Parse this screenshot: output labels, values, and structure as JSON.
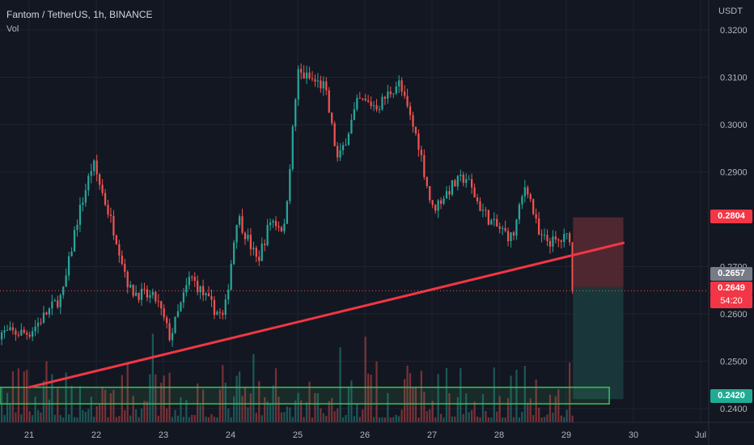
{
  "header": {
    "symbol_line": "Fantom / TetherUS, 1h, BINANCE",
    "volume_label": "Vol",
    "currency": "USDT"
  },
  "colors": {
    "background": "#131722",
    "grid": "#1f2330",
    "up": "#26a69a",
    "down": "#ef5350",
    "trendline": "#f23645",
    "stop_zone": "#5a2a34",
    "target_zone": "#1b3d3f",
    "support_box": "#3fbf5f"
  },
  "chart_data": {
    "type": "candlestick",
    "interval": "1h",
    "x_tick_labels": [
      "21",
      "22",
      "23",
      "24",
      "25",
      "26",
      "27",
      "28",
      "29",
      "30",
      "Jul"
    ],
    "y_tick_labels": [
      "0.3200",
      "0.3100",
      "0.3000",
      "0.2900",
      "0.2700",
      "0.2600",
      "0.2500",
      "0.2400"
    ],
    "ylim": [
      0.2385,
      0.3215
    ],
    "price_path_keypoints": [
      [
        "21",
        0.256
      ],
      [
        "21.5",
        0.264
      ],
      [
        "21.7",
        0.279
      ],
      [
        "21.95",
        0.292
      ],
      [
        "22.3",
        0.276
      ],
      [
        "22.5",
        0.265
      ],
      [
        "22.9",
        0.263
      ],
      [
        "23.1",
        0.255
      ],
      [
        "23.4",
        0.268
      ],
      [
        "23.7",
        0.262
      ],
      [
        "23.9",
        0.259
      ],
      [
        "24.1",
        0.281
      ],
      [
        "24.4",
        0.271
      ],
      [
        "24.6",
        0.28
      ],
      [
        "24.8",
        0.278
      ],
      [
        "25.0",
        0.311
      ],
      [
        "25.4",
        0.308
      ],
      [
        "25.6",
        0.292
      ],
      [
        "25.9",
        0.305
      ],
      [
        "26.2",
        0.304
      ],
      [
        "26.5",
        0.309
      ],
      [
        "26.8",
        0.296
      ],
      [
        "27.0",
        0.282
      ],
      [
        "27.3",
        0.287
      ],
      [
        "27.5",
        0.289
      ],
      [
        "27.7",
        0.283
      ],
      [
        "27.9",
        0.279
      ],
      [
        "28.2",
        0.276
      ],
      [
        "28.4",
        0.288
      ],
      [
        "28.6",
        0.276
      ],
      [
        "28.85",
        0.275
      ],
      [
        "29.05",
        0.2765
      ],
      [
        "29.1",
        0.2657
      ]
    ],
    "trendline": {
      "from": [
        "21",
        0.2445
      ],
      "to": [
        "29.85",
        0.275
      ]
    },
    "position": {
      "entry": 0.2657,
      "stop": 0.2804,
      "target": 0.242
    },
    "support_zone": [
      0.241,
      0.2445
    ],
    "price_labels": [
      {
        "value": "0.2804",
        "kind": "stop"
      },
      {
        "value": "0.2657",
        "kind": "last"
      },
      {
        "value": "0.2649",
        "kind": "current"
      },
      {
        "value": "54:20",
        "kind": "countdown"
      },
      {
        "value": "0.2420",
        "kind": "target"
      }
    ]
  }
}
